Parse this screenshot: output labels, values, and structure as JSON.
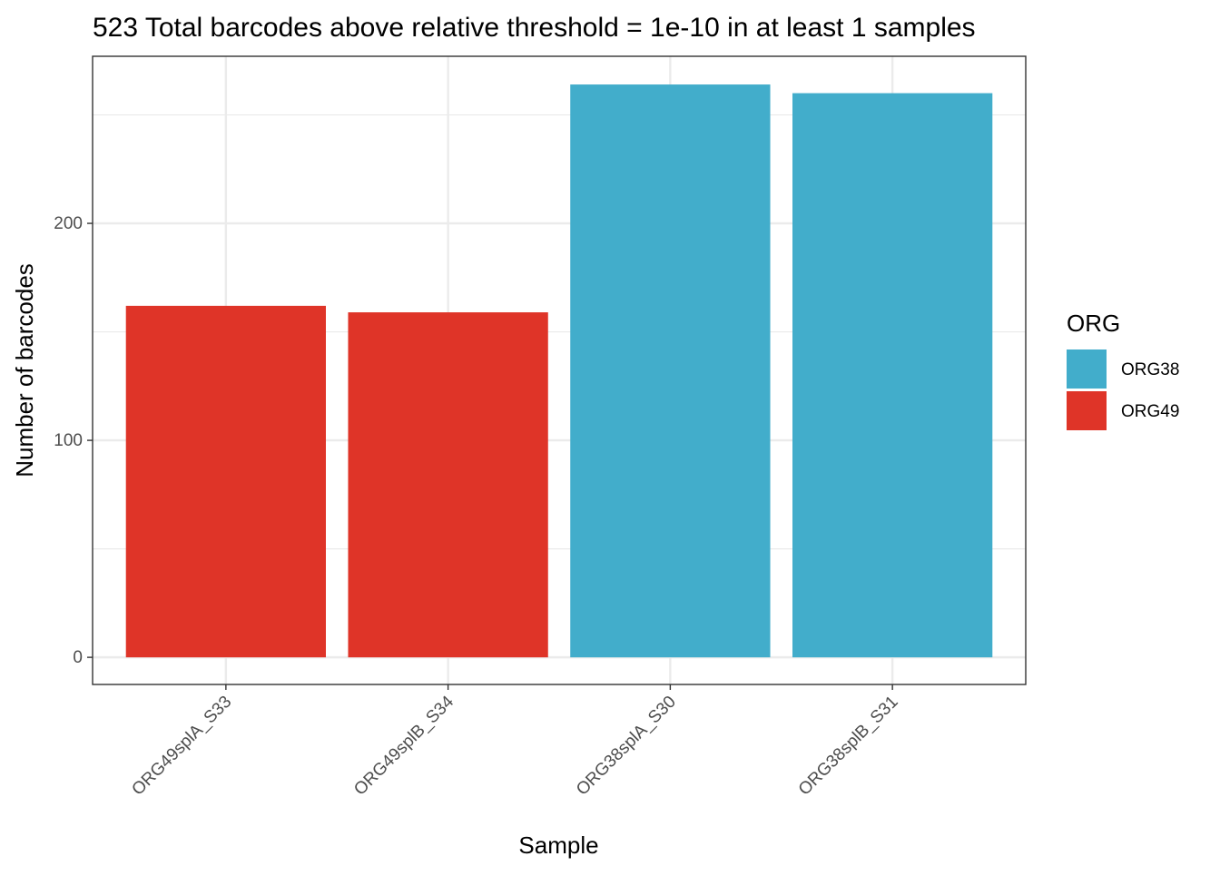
{
  "chart_data": {
    "type": "bar",
    "title": "523 Total barcodes above relative threshold = 1e-10 in at least 1 samples",
    "xlabel": "Sample",
    "ylabel": "Number of barcodes",
    "categories": [
      "ORG49splA_S33",
      "ORG49splB_S34",
      "ORG38splA_S30",
      "ORG38splB_S31"
    ],
    "values": [
      162,
      159,
      264,
      260
    ],
    "groups": [
      "ORG49",
      "ORG49",
      "ORG38",
      "ORG38"
    ],
    "y_ticks": [
      0,
      100,
      200
    ],
    "ylim": [
      -12.5,
      277
    ],
    "grid": true,
    "legend": {
      "title": "ORG",
      "position": "right",
      "entries": [
        {
          "label": "ORG38",
          "color": "#42ADCB"
        },
        {
          "label": "ORG49",
          "color": "#DF3428"
        }
      ]
    }
  }
}
